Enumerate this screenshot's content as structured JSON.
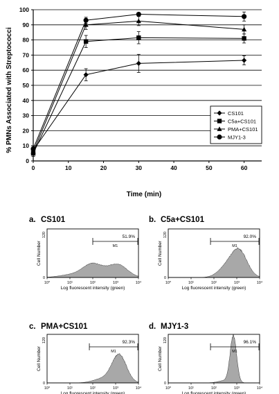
{
  "top_chart": {
    "ylabel": "% PMNs Associated with Streptococci",
    "xlabel": "Time (min)"
  },
  "chart_data": [
    {
      "type": "line",
      "xlabel": "Time (min)",
      "ylabel": "% PMNs Associated with Streptococci",
      "x_ticks": [
        "0",
        "10",
        "20",
        "30",
        "40",
        "50",
        "60"
      ],
      "y_ticks": [
        "0",
        "10",
        "20",
        "30",
        "40",
        "50",
        "60",
        "70",
        "80",
        "90",
        "100"
      ],
      "xlim": [
        0,
        65
      ],
      "ylim": [
        0,
        100
      ],
      "grid": "horizontal",
      "legend_position": "right",
      "x": [
        0,
        15,
        30,
        60
      ],
      "series": [
        {
          "name": "CS101",
          "marker": "diamond",
          "values": [
            7,
            57,
            64.5,
            66.5
          ],
          "errors": [
            2,
            4,
            6,
            3
          ]
        },
        {
          "name": "C5a+CS101",
          "marker": "square",
          "values": [
            5,
            79,
            81.5,
            81
          ],
          "errors": [
            2,
            4,
            4,
            3
          ]
        },
        {
          "name": "PMA+CS101",
          "marker": "triangle",
          "values": [
            6,
            90,
            92.5,
            87
          ],
          "errors": [
            2,
            3,
            3,
            3
          ]
        },
        {
          "name": "MJY1-3",
          "marker": "circle",
          "values": [
            8,
            93,
            97,
            95.5
          ],
          "errors": [
            2,
            2,
            1,
            3
          ]
        }
      ]
    },
    {
      "type": "area",
      "panel_label": "a.",
      "title": "CS101",
      "ylabel": "Cell Number",
      "xlabel": "Log fluorescent intensity (green)",
      "y_max_label": "120",
      "y_zero_label": "0",
      "x_ticks": [
        "10⁰",
        "10¹",
        "10²",
        "10³",
        "10⁴"
      ],
      "gate_label": "M1",
      "gate_percent": "51.9%",
      "gate_range_log": [
        2,
        4
      ],
      "distribution": "broad-bimodal"
    },
    {
      "type": "area",
      "panel_label": "b.",
      "title": "C5a+CS101",
      "ylabel": "Cell Number",
      "xlabel": "Log fluorescent intensity (green)",
      "y_max_label": "120",
      "y_zero_label": "0",
      "x_ticks": [
        "10⁰",
        "10¹",
        "10²",
        "10³",
        "10⁴"
      ],
      "gate_label": "M1",
      "gate_percent": "92.0%",
      "gate_range_log": [
        1.85,
        4
      ],
      "distribution": "broad-high"
    },
    {
      "type": "area",
      "panel_label": "c.",
      "title": "PMA+CS101",
      "ylabel": "Cell Number",
      "xlabel": "Log fluorescent intensity (green)",
      "y_max_label": "120",
      "y_zero_label": "0",
      "x_ticks": [
        "10⁰",
        "10¹",
        "10²",
        "10³",
        "10⁴"
      ],
      "gate_label": "M1",
      "gate_percent": "92.3%",
      "gate_range_log": [
        1.85,
        4
      ],
      "distribution": "peak-high"
    },
    {
      "type": "area",
      "panel_label": "d.",
      "title": "MJY1-3",
      "ylabel": "Cell Number",
      "xlabel": "Log fluorescent intensity (green)",
      "y_max_label": "120",
      "y_zero_label": "0",
      "x_ticks": [
        "10⁰",
        "10¹",
        "10²",
        "10³",
        "10⁴"
      ],
      "gate_label": "M1",
      "gate_percent": "96.1%",
      "gate_range_log": [
        1.85,
        4
      ],
      "distribution": "narrow-sharp"
    }
  ]
}
